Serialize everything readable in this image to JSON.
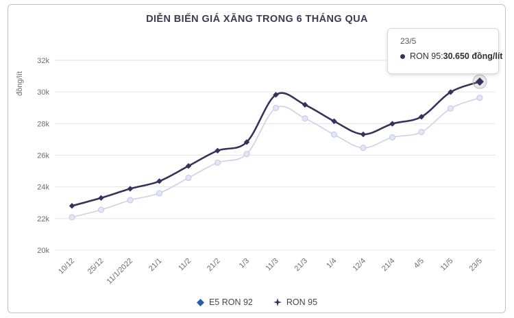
{
  "title": "DIỄN BIẾN GIÁ XĂNG TRONG 6 THÁNG QUA",
  "chart_data": {
    "type": "line",
    "title": "DIỄN BIẾN GIÁ XĂNG TRONG 6 THÁNG QUA",
    "ylabel": "đồng/lít",
    "xlabel": "",
    "x": [
      "10/12",
      "25/12",
      "11/1/2022",
      "21/1",
      "11/2",
      "21/2",
      "1/3",
      "11/3",
      "21/3",
      "1/4",
      "12/4",
      "21/4",
      "4/5",
      "11/5",
      "23/5"
    ],
    "series": [
      {
        "name": "E5 RON 92",
        "color": "#c9d1e9",
        "marker": "circle",
        "marker_fill": "#e2e6f4",
        "marker_stroke": "#bfc8e4",
        "values": [
          22080,
          22550,
          23160,
          23600,
          24570,
          25530,
          26080,
          28990,
          28330,
          27310,
          26470,
          27130,
          27470,
          28960,
          29630
        ]
      },
      {
        "name": "RON 95",
        "color": "#32345b",
        "marker": "diamond",
        "values": [
          22800,
          23300,
          23880,
          24360,
          25320,
          26290,
          26830,
          29820,
          29190,
          28150,
          27320,
          27990,
          28430,
          29990,
          30650
        ]
      }
    ],
    "ylim": [
      20000,
      32000
    ],
    "yticks": [
      20000,
      22000,
      24000,
      26000,
      28000,
      30000,
      32000
    ],
    "ytick_labels": [
      "20k",
      "22k",
      "24k",
      "26k",
      "28k",
      "30k",
      "32k"
    ],
    "grid": "horizontal",
    "legend_position": "bottom",
    "highlight": {
      "series": "RON 95",
      "index": 14
    }
  },
  "tooltip": {
    "header": "23/5",
    "series_label": "RON 95: ",
    "value": "30.650 đồng/lít"
  },
  "legend": {
    "items": [
      {
        "label": "E5 RON 92"
      },
      {
        "label": "RON 95"
      }
    ]
  },
  "colors": {
    "ron95_line": "#32345b",
    "e5_line": "#c9d1e9",
    "e5_legend_marker": "#2b5aa7",
    "ron95_legend_marker": "#32345b",
    "grid": "#e5e5e5",
    "axis_text": "#6b6d76",
    "title_text": "#3a3c52",
    "card_border": "#c2c2c2",
    "halo_stroke": "#b9b9b9"
  }
}
